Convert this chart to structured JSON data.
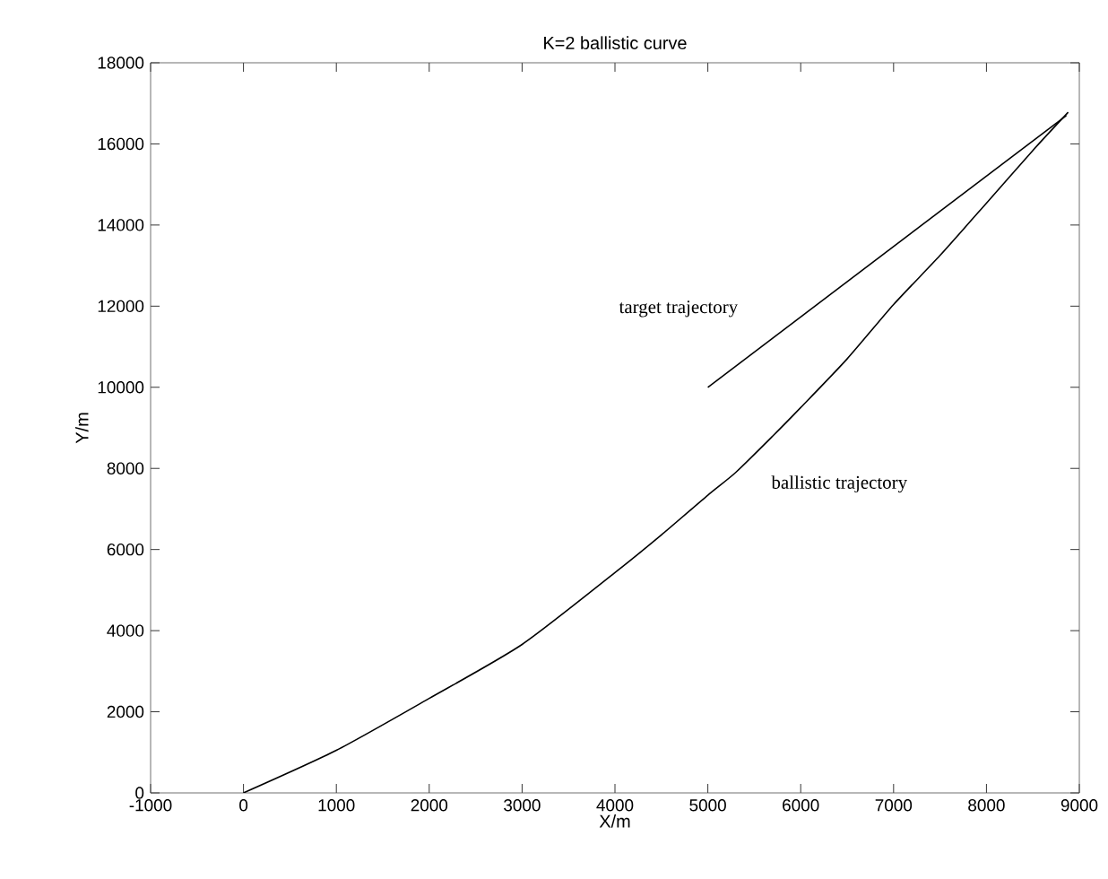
{
  "chart_data": {
    "type": "line",
    "title": "K=2 ballistic curve",
    "xlabel": "X/m",
    "ylabel": "Y/m",
    "xlim": [
      -1000,
      9000
    ],
    "ylim": [
      0,
      18000
    ],
    "xticks": [
      -1000,
      0,
      1000,
      2000,
      3000,
      4000,
      5000,
      6000,
      7000,
      8000,
      9000
    ],
    "yticks": [
      0,
      2000,
      4000,
      6000,
      8000,
      10000,
      12000,
      14000,
      16000,
      18000
    ],
    "grid": false,
    "marker": "none",
    "line_style": "solid",
    "series": [
      {
        "color": "#000000",
        "x": [
          0,
          1000,
          2000,
          3000,
          4000,
          4500,
          5000,
          5300,
          5700,
          6000,
          6500,
          7000,
          7500,
          8000,
          8500,
          8880
        ],
        "values": [
          0,
          1050,
          2330,
          3660,
          5430,
          6360,
          7340,
          7900,
          8800,
          9500,
          10700,
          12040,
          13250,
          14540,
          15840,
          16780
        ]
      },
      {
        "color": "#000000",
        "x": [
          5000,
          8860
        ],
        "values": [
          10000,
          16700
        ]
      }
    ],
    "annotations": [
      "target trajectory",
      "ballistic trajectory"
    ]
  }
}
